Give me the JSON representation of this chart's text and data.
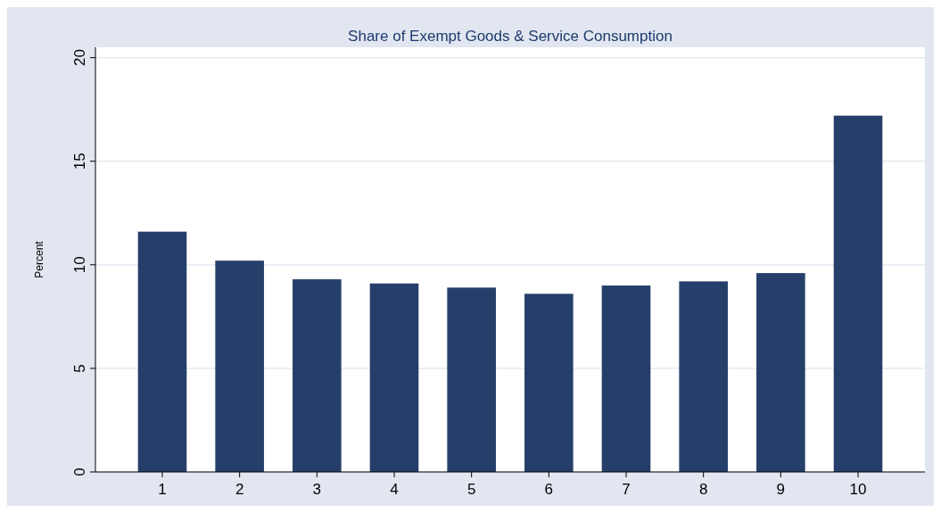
{
  "chart_data": {
    "type": "bar",
    "title": "Share of Exempt Goods & Service Consumption",
    "ylabel": "Percent",
    "categories": [
      "1",
      "2",
      "3",
      "4",
      "5",
      "6",
      "7",
      "8",
      "9",
      "10"
    ],
    "values": [
      11.6,
      10.2,
      9.3,
      9.1,
      8.9,
      8.6,
      9.0,
      9.2,
      9.6,
      17.2
    ],
    "color": "#263f6a",
    "ylim": [
      0,
      20.5
    ],
    "yticks": [
      0,
      5,
      10,
      15,
      20
    ],
    "grid": "y"
  }
}
